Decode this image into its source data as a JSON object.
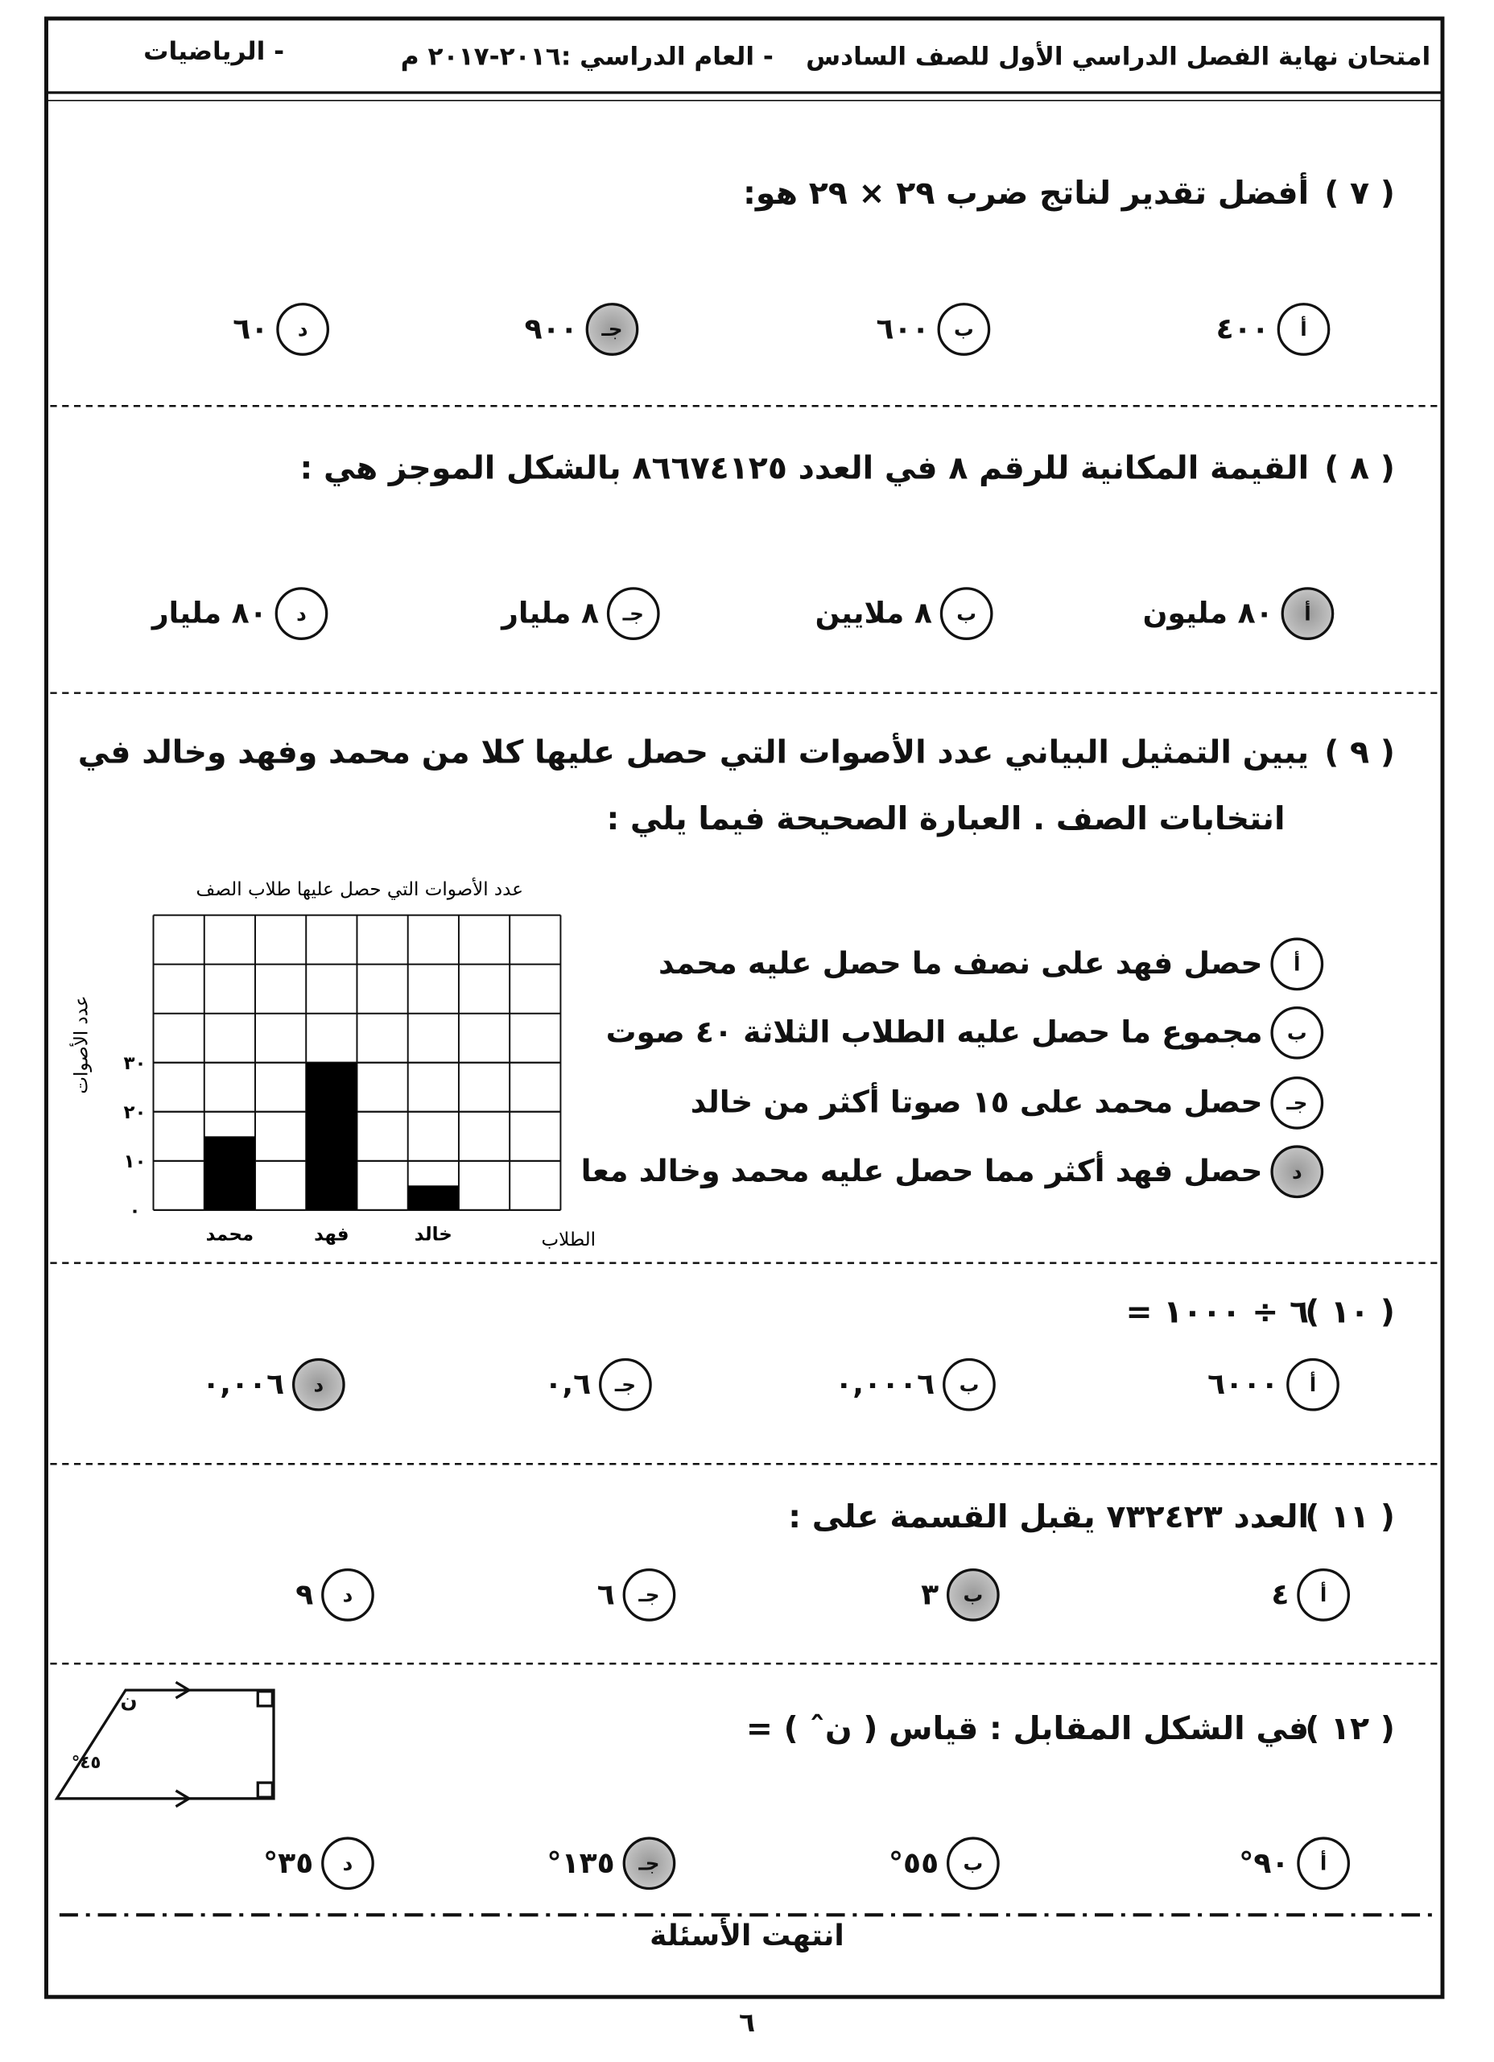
{
  "header": {
    "title": "امتحان نهاية الفصل الدراسي الأول للصف السادس",
    "year": "- العام الدراسي :٢٠١٦-٢٠١٧ م",
    "subject": "- الرياضيات"
  },
  "questions": [
    {
      "number": "( ٧ )",
      "lines": [
        "أفضل تقدير لناتج ضرب ٢٩ × ٢٩ هو:"
      ],
      "options": [
        {
          "letter": "أ",
          "text": "٤٠٠"
        },
        {
          "letter": "ب",
          "text": "٦٠٠"
        },
        {
          "letter": "جـ",
          "text": "٩٠٠",
          "shaded": true
        },
        {
          "letter": "د",
          "text": "٦٠"
        }
      ]
    },
    {
      "number": "( ٨ )",
      "lines": [
        "القيمة المكانية للرقم ٨ في العدد ٨٦٦٧٤١٢٥ بالشكل الموجز هي :"
      ],
      "options": [
        {
          "letter": "أ",
          "text": "٨٠ مليون",
          "shaded": true
        },
        {
          "letter": "ب",
          "text": "٨ ملايين"
        },
        {
          "letter": "جـ",
          "text": "٨ مليار"
        },
        {
          "letter": "د",
          "text": "٨٠ مليار"
        }
      ]
    },
    {
      "number": "( ٩ )",
      "lines": [
        "يبين التمثيل البياني عدد الأصوات التي حصل عليها كلا من محمد وفهد وخالد في",
        "انتخابات الصف . العبارة الصحيحة فيما يلي :"
      ],
      "options": [
        {
          "letter": "أ",
          "text": "حصل فهد على نصف ما حصل عليه محمد"
        },
        {
          "letter": "ب",
          "text": "مجموع ما حصل عليه الطلاب الثلاثة ٤٠ صوت"
        },
        {
          "letter": "جـ",
          "text": "حصل محمد على ١٥ صوتا أكثر من خالد"
        },
        {
          "letter": "د",
          "text": "حصل فهد أكثر مما حصل عليه محمد وخالد معا",
          "shaded": true
        }
      ],
      "chart": {
        "type": "bar",
        "title": "عدد الأصوات التي حصل عليها طلاب الصف",
        "y_label": "عدد الأصوات",
        "x_label": "الطلاب",
        "categories": [
          "محمد",
          "فهد",
          "خالد"
        ],
        "values": [
          15,
          30,
          5
        ],
        "color": "#000000",
        "ylim": [
          0,
          60
        ],
        "yticks": [
          {
            "value": 0,
            "label": "٠"
          },
          {
            "value": 10,
            "label": "١٠"
          },
          {
            "value": 20,
            "label": "٢٠"
          },
          {
            "value": 30,
            "label": "٣٠"
          }
        ],
        "grid": true
      }
    },
    {
      "number": "( ١٠ )",
      "lines": [
        "٦ ÷ ١٠٠٠ ="
      ],
      "options": [
        {
          "letter": "أ",
          "text": "٦٠٠٠"
        },
        {
          "letter": "ب",
          "text": "٠,٠٠٠٦"
        },
        {
          "letter": "جـ",
          "text": "٠,٦"
        },
        {
          "letter": "د",
          "text": "٠,٠٠٦",
          "shaded": true
        }
      ]
    },
    {
      "number": "( ١١ )",
      "lines": [
        "العدد ٧٣٢٤٢٣ يقبل القسمة على :"
      ],
      "options": [
        {
          "letter": "أ",
          "text": "٤"
        },
        {
          "letter": "ب",
          "text": "٣",
          "shaded": true
        },
        {
          "letter": "جـ",
          "text": "٦"
        },
        {
          "letter": "د",
          "text": "٩"
        }
      ]
    },
    {
      "number": "( ١٢ )",
      "lines": [
        "في الشكل المقابل : قياس ( نˆ ) ="
      ],
      "options": [
        {
          "letter": "أ",
          "text": "٩٠°"
        },
        {
          "letter": "ب",
          "text": "٥٥°"
        },
        {
          "letter": "جـ",
          "text": "١٣٥°",
          "shaded": true
        },
        {
          "letter": "د",
          "text": "٣٥°"
        }
      ],
      "figure": {
        "angle_label": "ن",
        "angle_value": "٤٥°"
      }
    }
  ],
  "footer": {
    "end": "انتهت الأسئلة",
    "page": "٦"
  }
}
